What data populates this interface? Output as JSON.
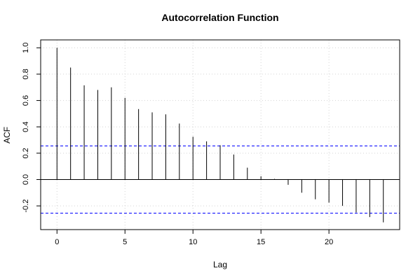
{
  "chart_data": {
    "type": "bar",
    "title": "Autocorrelation Function",
    "xlabel": "Lag",
    "ylabel": "ACF",
    "xlim": [
      -1.2,
      25.2
    ],
    "ylim": [
      -0.38,
      1.06
    ],
    "x_ticks": [
      0,
      5,
      10,
      15,
      20
    ],
    "x_tick_labels": [
      "0",
      "5",
      "10",
      "15",
      "20"
    ],
    "y_ticks": [
      -0.2,
      0.0,
      0.2,
      0.4,
      0.6,
      0.8,
      1.0
    ],
    "y_tick_labels": [
      "-0.2",
      "0.0",
      "0.2",
      "0.4",
      "0.6",
      "0.8",
      "1.0"
    ],
    "grid": true,
    "lags": [
      0,
      1,
      2,
      3,
      4,
      5,
      6,
      7,
      8,
      9,
      10,
      11,
      12,
      13,
      14,
      15,
      16,
      17,
      18,
      19,
      20,
      21,
      22,
      23,
      24
    ],
    "values": [
      1.0,
      0.85,
      0.715,
      0.68,
      0.7,
      0.62,
      0.535,
      0.51,
      0.495,
      0.425,
      0.325,
      0.29,
      0.26,
      0.19,
      0.09,
      0.025,
      0.005,
      -0.04,
      -0.1,
      -0.15,
      -0.175,
      -0.2,
      -0.25,
      -0.285,
      -0.325
    ],
    "confidence_bound": 0.255,
    "colors": {
      "bars": "#000000",
      "confidence": "#0000ff",
      "grid": "#d3d3d3",
      "zero_line": "#000000"
    }
  }
}
